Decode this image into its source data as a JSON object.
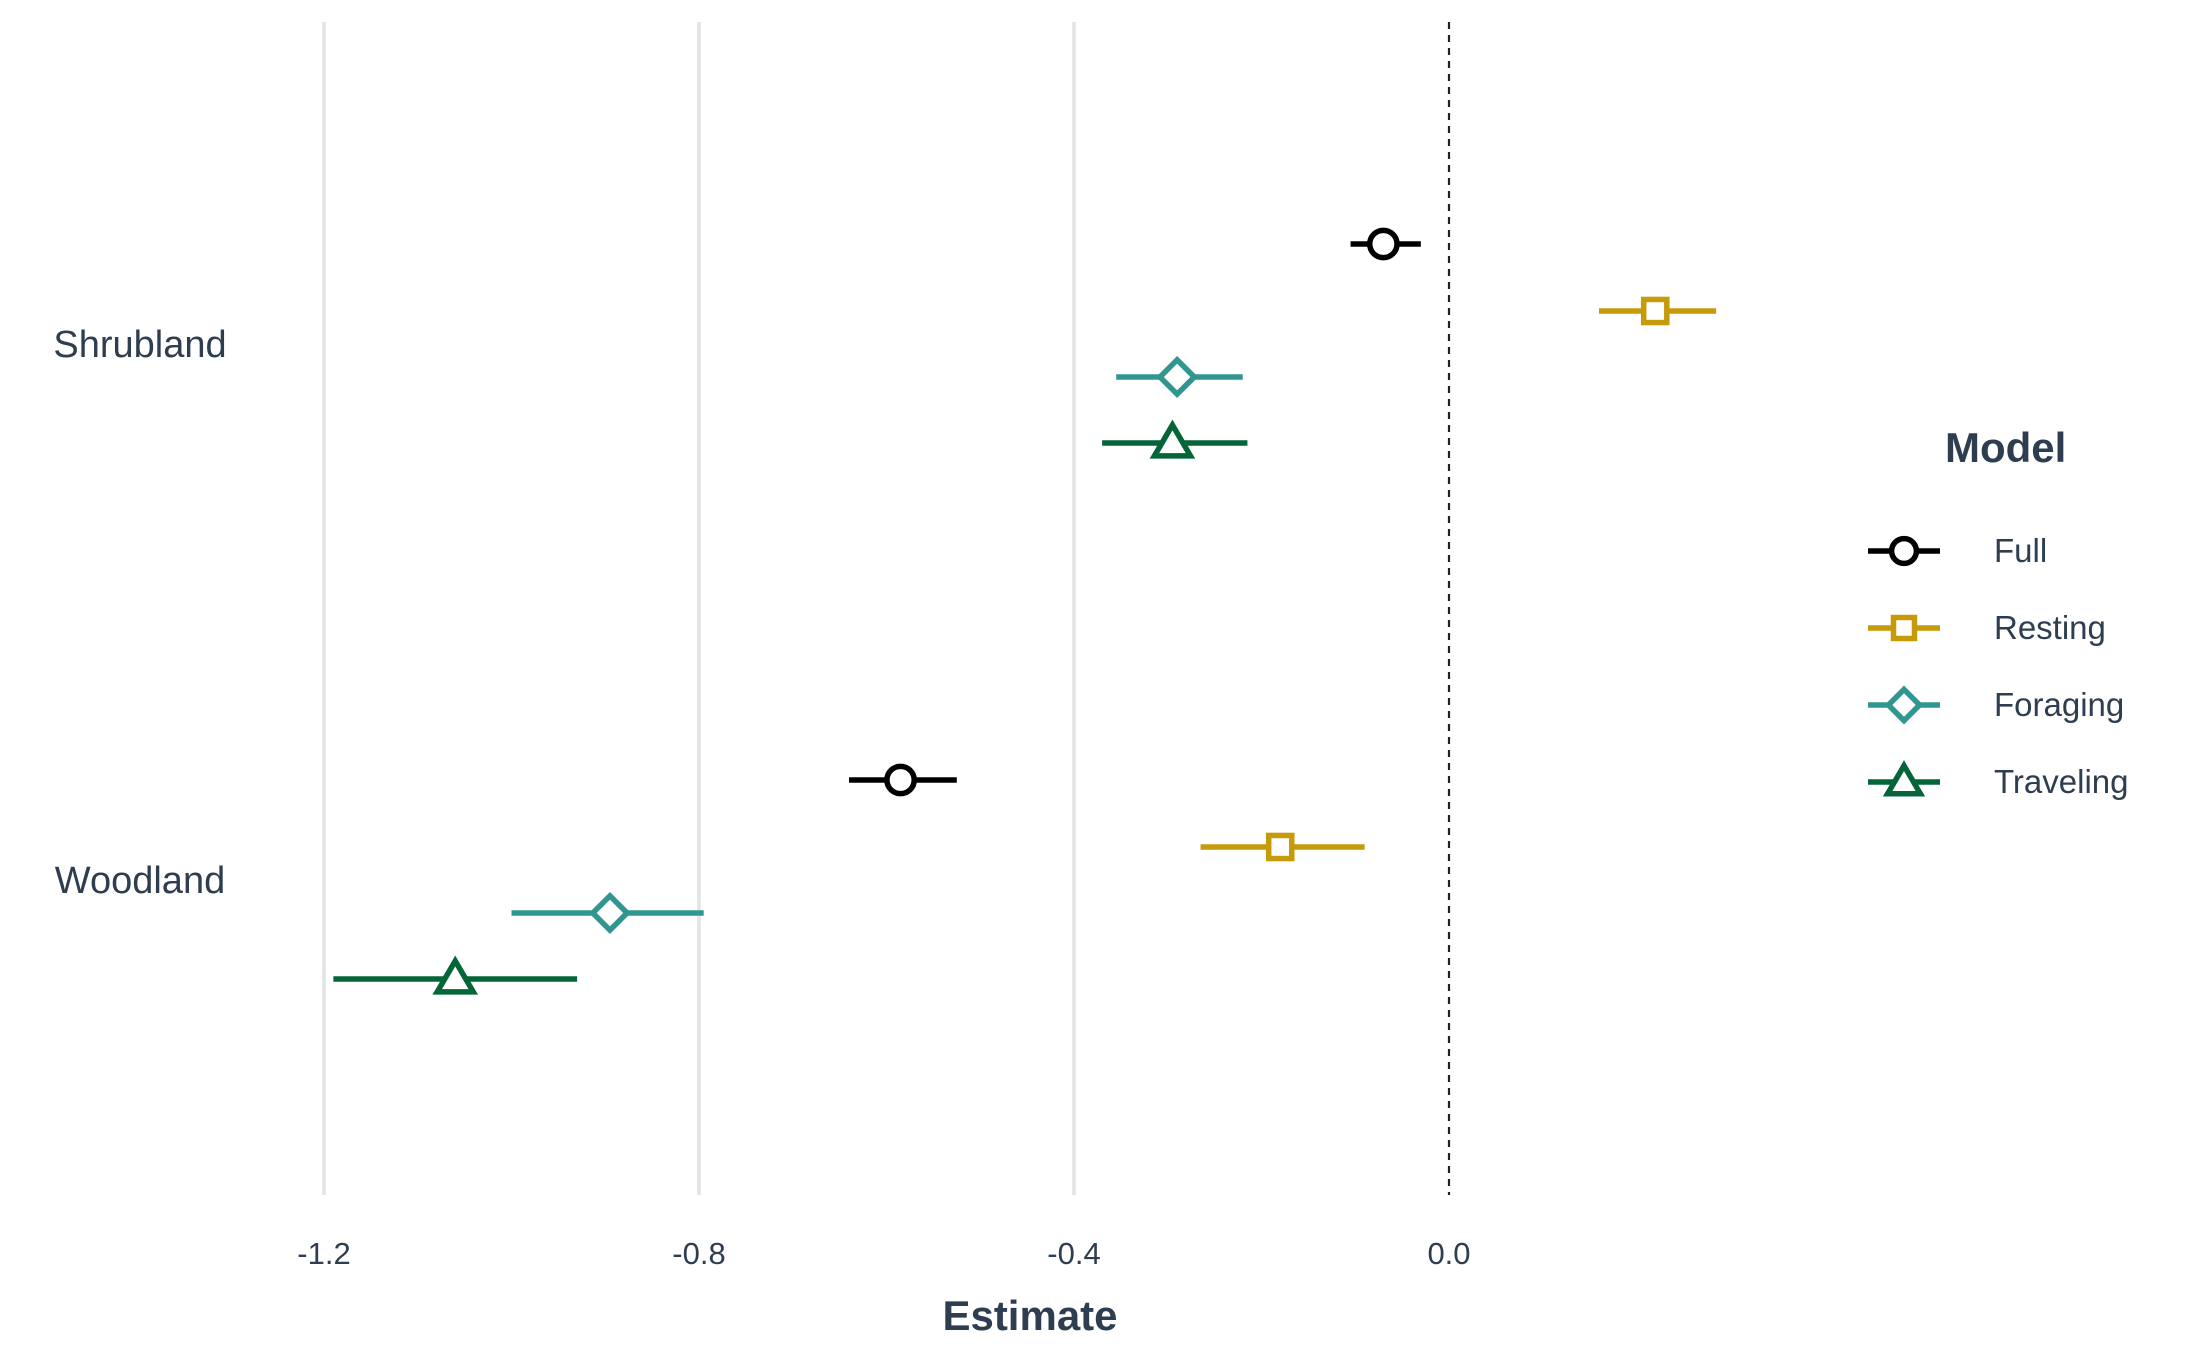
{
  "chart_data": {
    "type": "forest",
    "xlabel": "Estimate",
    "ylabel": "",
    "xlim": [
      -1.42,
      0.4
    ],
    "x_ticks": [
      -1.2,
      -0.8,
      -0.4,
      0.0
    ],
    "x_tick_labels": [
      "-1.2",
      "-0.8",
      "-0.4",
      "0.0"
    ],
    "reference_line": 0.0,
    "grid": "vertical major",
    "categories": [
      "Shrubland",
      "Woodland"
    ],
    "legend": {
      "title": "Model",
      "placement": "right"
    },
    "series": [
      {
        "name": "Full",
        "marker": "circle",
        "color": "#000000",
        "points": [
          {
            "category": "Shrubland",
            "estimate": -0.07,
            "lower": -0.105,
            "upper": -0.03
          },
          {
            "category": "Woodland",
            "estimate": -0.585,
            "lower": -0.64,
            "upper": -0.525
          }
        ]
      },
      {
        "name": "Resting",
        "marker": "square",
        "color": "#c79a0a",
        "points": [
          {
            "category": "Shrubland",
            "estimate": 0.22,
            "lower": 0.16,
            "upper": 0.285
          },
          {
            "category": "Woodland",
            "estimate": -0.18,
            "lower": -0.265,
            "upper": -0.09
          }
        ]
      },
      {
        "name": "Foraging",
        "marker": "diamond",
        "color": "#31968f",
        "points": [
          {
            "category": "Shrubland",
            "estimate": -0.29,
            "lower": -0.355,
            "upper": -0.22
          },
          {
            "category": "Woodland",
            "estimate": -0.895,
            "lower": -1.0,
            "upper": -0.795
          }
        ]
      },
      {
        "name": "Traveling",
        "marker": "triangle",
        "color": "#046538",
        "points": [
          {
            "category": "Shrubland",
            "estimate": -0.295,
            "lower": -0.37,
            "upper": -0.215
          },
          {
            "category": "Woodland",
            "estimate": -1.06,
            "lower": -1.19,
            "upper": -0.93
          }
        ]
      }
    ]
  }
}
